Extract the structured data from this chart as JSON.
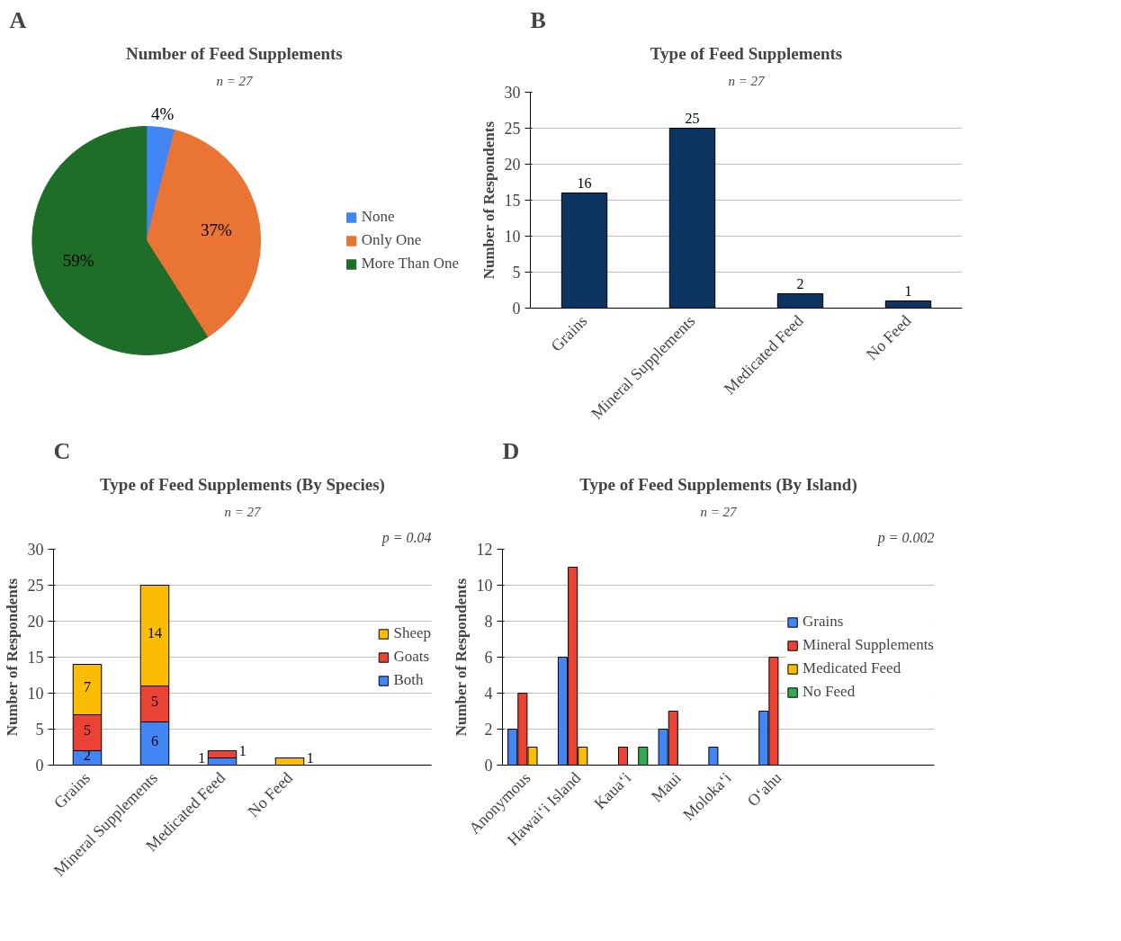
{
  "chart_data": [
    {
      "type": "pie",
      "title": "Number of Feed Supplements",
      "subtitle": "n = 27",
      "annotations": [
        "A"
      ],
      "categories": [
        "None",
        "Only One",
        "More Than One"
      ],
      "values": [
        4,
        37,
        59
      ],
      "colors": [
        "#4285f4",
        "#ea7434",
        "#1e6e2a"
      ],
      "value_labels": [
        "4%",
        "37%",
        "59%"
      ],
      "legend": "right"
    },
    {
      "type": "bar",
      "title": "Type of Feed Supplements",
      "subtitle": "n = 27",
      "annotations": [
        "B"
      ],
      "ylabel": "Number of Respondents",
      "categories": [
        "Grains",
        "Mineral Supplements",
        "Medicated Feed",
        "No Feed"
      ],
      "values": [
        16,
        25,
        2,
        1
      ],
      "color": "#0b3560",
      "ylim": [
        0,
        30
      ],
      "yticks": [
        0,
        5,
        10,
        15,
        20,
        25,
        30
      ],
      "grid": "y",
      "data_labels": true
    },
    {
      "type": "bar",
      "stacked": true,
      "title": "Type of Feed Supplements (By Species)",
      "subtitle": "n = 27",
      "annotations": [
        "C",
        "p = 0.04"
      ],
      "ylabel": "Number of Respondents",
      "categories": [
        "Grains",
        "Mineral Supplements",
        "Medicated Feed",
        "No Feed"
      ],
      "ylim": [
        0,
        30
      ],
      "yticks": [
        0,
        5,
        10,
        15,
        20,
        25,
        30
      ],
      "grid": "y",
      "legend": "right",
      "series": [
        {
          "name": "Both",
          "color": "#4285f4",
          "values": [
            2,
            6,
            1,
            null
          ],
          "value_labels": [
            "2",
            "6",
            "1",
            null
          ]
        },
        {
          "name": "Goats",
          "color": "#ea4335",
          "values": [
            5,
            5,
            1,
            null
          ],
          "value_labels": [
            "5",
            "5",
            "1",
            null
          ]
        },
        {
          "name": "Sheep",
          "color": "#fbbc04",
          "values": [
            7,
            14,
            null,
            1
          ],
          "value_labels": [
            "7",
            "14",
            null,
            "1"
          ]
        }
      ]
    },
    {
      "type": "bar",
      "title": "Type of Feed Supplements (By Island)",
      "subtitle": "n = 27",
      "annotations": [
        "D",
        "p = 0.002"
      ],
      "ylabel": "Number of Respondents",
      "categories": [
        "Anonymous",
        "Hawaiʻi Island",
        "Kauaʻi",
        "Maui",
        "Molokaʻi",
        "Oʻahu"
      ],
      "ylim": [
        0,
        12
      ],
      "yticks": [
        0,
        2,
        4,
        6,
        8,
        10,
        12
      ],
      "grid": "y",
      "legend": "right",
      "series": [
        {
          "name": "Grains",
          "color": "#4285f4",
          "values": [
            2,
            6,
            null,
            2,
            1,
            3
          ]
        },
        {
          "name": "Mineral Supplements",
          "color": "#ea4335",
          "values": [
            4,
            11,
            1,
            3,
            null,
            6
          ]
        },
        {
          "name": "Medicated Feed",
          "color": "#fbbc04",
          "values": [
            1,
            1,
            null,
            null,
            null,
            null
          ]
        },
        {
          "name": "No Feed",
          "color": "#34a853",
          "values": [
            null,
            null,
            1,
            null,
            null,
            null
          ]
        }
      ]
    }
  ]
}
